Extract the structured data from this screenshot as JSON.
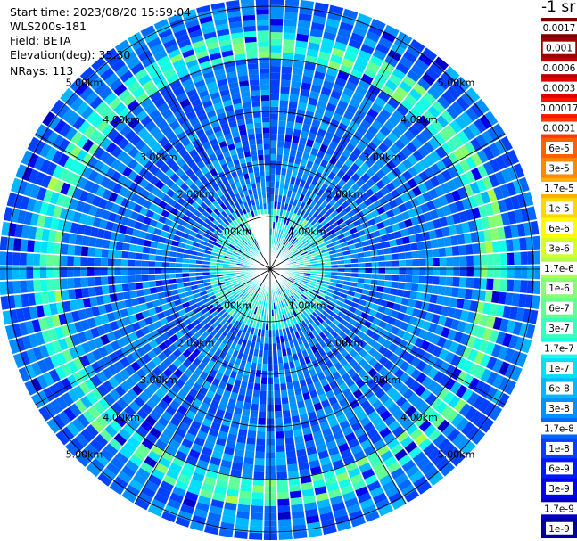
{
  "header": {
    "start_time": "Start time: 2023/08/20 15:59:04",
    "instrument": "WLS200s-181",
    "field": "Field: BETA",
    "elevation": "Elevation(deg): 35.30",
    "nrays": "NRays: 113"
  },
  "colorbar": {
    "unit": "-1 sr",
    "ticks": [
      "0.0017",
      "0.001",
      "0.0006",
      "0.0003",
      "0.00017",
      "0.0001",
      "6e-5",
      "3e-5",
      "1.7e-5",
      "1e-5",
      "6e-6",
      "3e-6",
      "1.7e-6",
      "1e-6",
      "6e-7",
      "3e-7",
      "1.7e-7",
      "1e-7",
      "6e-8",
      "3e-8",
      "1.7e-8",
      "1e-8",
      "6e-9",
      "3e-9",
      "1.7e-9",
      "1e-9"
    ],
    "colors": [
      "#7f0000",
      "#9e0000",
      "#be0000",
      "#de0000",
      "#fe1300",
      "#ff3a00",
      "#ff6100",
      "#ff8800",
      "#ffb000",
      "#ffd700",
      "#fffe00",
      "#d6ff22",
      "#b0ff47",
      "#88ff6f",
      "#61ff96",
      "#3affbd",
      "#13fee4",
      "#00dfff",
      "#00b8ff",
      "#0090ff",
      "#0068ff",
      "#0040ff",
      "#0018ff",
      "#0000f0",
      "#0000c7",
      "#00009e"
    ]
  },
  "chart_data": {
    "type": "heatmap",
    "projection": "polar (PPI scan)",
    "field": "BETA",
    "elevation_deg": 35.3,
    "n_rays": 113,
    "range_rings_km": [
      1,
      2,
      3,
      4,
      5
    ],
    "range_labels": [
      "1.00km",
      "2.00km",
      "3.00km",
      "4.00km",
      "5.00km"
    ],
    "azimuth_gap_deg": [
      334,
      360
    ],
    "color_scale": "log",
    "color_range": [
      1e-09,
      0.0017
    ],
    "dominant_level": "about 1e-8",
    "enhanced_ring_km": 4.3,
    "enhanced_ring_level": "about 1.7e-7"
  }
}
